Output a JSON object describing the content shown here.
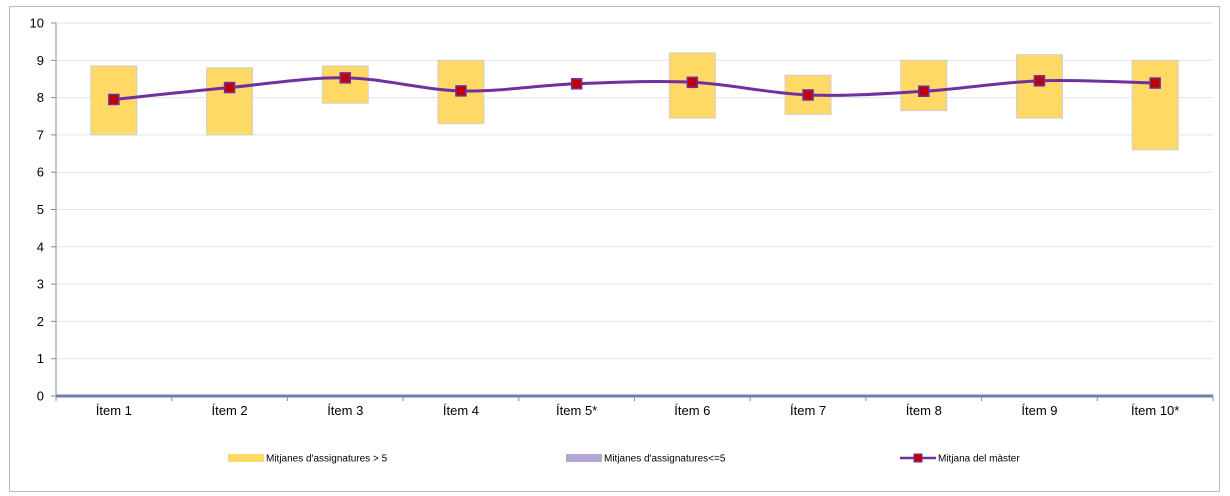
{
  "chart_data": {
    "type": "bar+line",
    "categories": [
      "Ítem 1",
      "Ítem 2",
      "Ítem 3",
      "Ítem 4",
      "Ítem 5*",
      "Ítem 6",
      "Ítem 7",
      "Ítem 8",
      "Ítem 9",
      "Ítem 10*"
    ],
    "ylim": [
      0,
      10
    ],
    "yticks": [
      "0",
      "1",
      "2",
      "3",
      "4",
      "5",
      "6",
      "7",
      "8",
      "9",
      "10"
    ],
    "grid": true,
    "legend_position": "bottom",
    "series": [
      {
        "name": "Mitjanes d'assignatures > 5",
        "kind": "floating-bar",
        "color": "#FFD966",
        "low": [
          7.0,
          7.0,
          7.85,
          7.3,
          null,
          7.45,
          7.55,
          7.65,
          7.45,
          6.6
        ],
        "high": [
          8.85,
          8.8,
          8.85,
          9.0,
          null,
          9.2,
          8.6,
          9.0,
          9.15,
          9.0
        ]
      },
      {
        "name": "Mitjanes d'assignatures<=5",
        "kind": "floating-bar",
        "color": "#B4A7D6",
        "low": [
          0,
          0,
          0,
          0,
          0,
          0,
          0,
          0,
          0,
          0
        ],
        "high": [
          0,
          0,
          0,
          0,
          0,
          0,
          0,
          0,
          0,
          0
        ]
      },
      {
        "name": "Mitjana del màster",
        "kind": "line",
        "color": "#7030A0",
        "marker_color": "#C00000",
        "values": [
          7.95,
          8.27,
          8.53,
          8.18,
          8.37,
          8.41,
          8.07,
          8.17,
          8.45,
          8.39
        ]
      }
    ]
  }
}
